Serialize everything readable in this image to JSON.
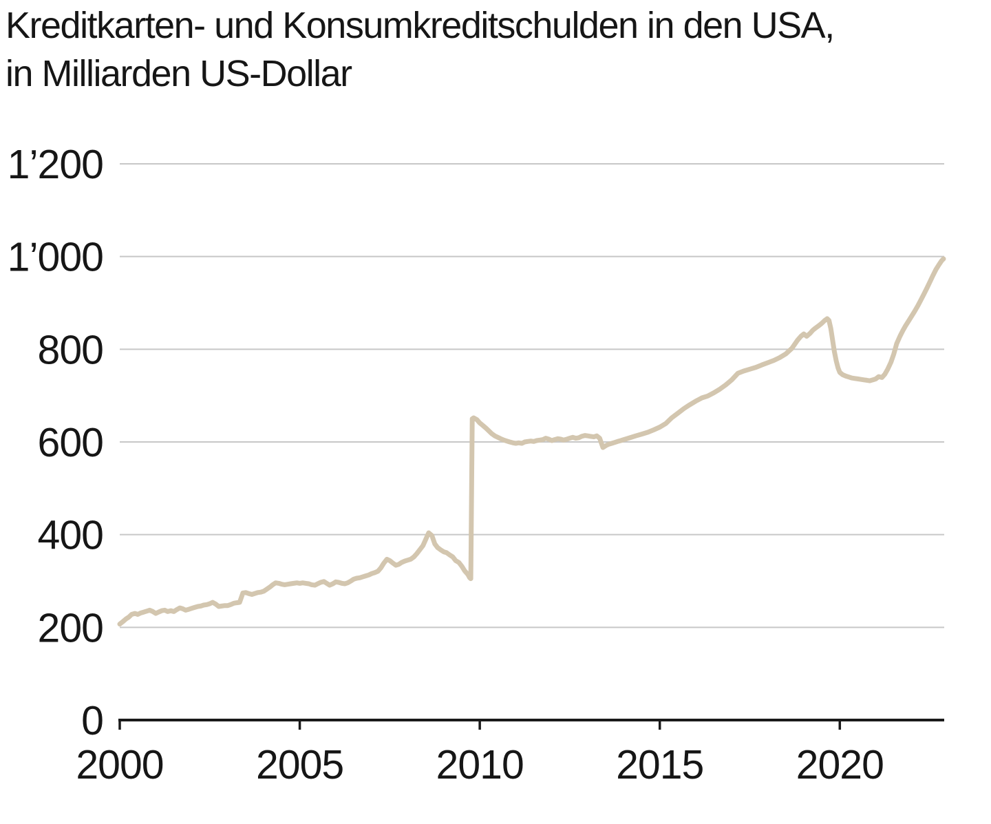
{
  "header": {
    "title_line1": "Kreditkarten- und Konsumkreditschulden in den USA,",
    "title_line2": "in Milliarden US-Dollar"
  },
  "colors": {
    "line": "#d3c6af",
    "grid": "#c7c7c7",
    "axis": "#1a1a1a",
    "text": "#161616"
  },
  "chart_data": {
    "type": "line",
    "title": "Kreditkarten- und Konsumkreditschulden in den USA, in Milliarden US-Dollar",
    "xlabel": "",
    "ylabel": "Milliarden US-Dollar",
    "x_range": [
      2000,
      2022.9
    ],
    "y_range": [
      0,
      1200
    ],
    "grid": "horizontal-only",
    "legend": "none",
    "x_ticks": [
      {
        "value": 2000,
        "label": "2000"
      },
      {
        "value": 2005,
        "label": "2005"
      },
      {
        "value": 2010,
        "label": "2010"
      },
      {
        "value": 2015,
        "label": "2015"
      },
      {
        "value": 2020,
        "label": "2020"
      }
    ],
    "y_ticks": [
      {
        "value": 0,
        "label": "0"
      },
      {
        "value": 200,
        "label": "200"
      },
      {
        "value": 400,
        "label": "400"
      },
      {
        "value": 600,
        "label": "600"
      },
      {
        "value": 800,
        "label": "800"
      },
      {
        "value": 1000,
        "label": "1’000"
      },
      {
        "value": 1200,
        "label": "1’200"
      }
    ],
    "series": [
      {
        "name": "Kreditkarten- und Konsumkreditschulden (Mrd. USD)",
        "color": "#d3c6af",
        "points": [
          [
            2000.0,
            207
          ],
          [
            2000.08,
            212
          ],
          [
            2000.17,
            218
          ],
          [
            2000.25,
            222
          ],
          [
            2000.33,
            228
          ],
          [
            2000.42,
            230
          ],
          [
            2000.5,
            228
          ],
          [
            2000.58,
            231
          ],
          [
            2000.67,
            233
          ],
          [
            2000.75,
            235
          ],
          [
            2000.83,
            237
          ],
          [
            2000.92,
            234
          ],
          [
            2001.0,
            230
          ],
          [
            2001.08,
            233
          ],
          [
            2001.17,
            236
          ],
          [
            2001.25,
            237
          ],
          [
            2001.33,
            234
          ],
          [
            2001.42,
            236
          ],
          [
            2001.5,
            234
          ],
          [
            2001.58,
            238
          ],
          [
            2001.67,
            242
          ],
          [
            2001.75,
            240
          ],
          [
            2001.83,
            237
          ],
          [
            2001.92,
            239
          ],
          [
            2002.0,
            241
          ],
          [
            2002.08,
            243
          ],
          [
            2002.17,
            245
          ],
          [
            2002.25,
            246
          ],
          [
            2002.33,
            248
          ],
          [
            2002.42,
            249
          ],
          [
            2002.5,
            251
          ],
          [
            2002.58,
            254
          ],
          [
            2002.67,
            250
          ],
          [
            2002.75,
            245
          ],
          [
            2002.83,
            246
          ],
          [
            2002.92,
            247
          ],
          [
            2003.0,
            247
          ],
          [
            2003.08,
            249
          ],
          [
            2003.17,
            252
          ],
          [
            2003.25,
            253
          ],
          [
            2003.33,
            254
          ],
          [
            2003.42,
            274
          ],
          [
            2003.5,
            275
          ],
          [
            2003.58,
            273
          ],
          [
            2003.67,
            271
          ],
          [
            2003.75,
            273
          ],
          [
            2003.83,
            275
          ],
          [
            2003.92,
            276
          ],
          [
            2004.0,
            278
          ],
          [
            2004.08,
            282
          ],
          [
            2004.17,
            287
          ],
          [
            2004.25,
            292
          ],
          [
            2004.33,
            296
          ],
          [
            2004.42,
            295
          ],
          [
            2004.5,
            293
          ],
          [
            2004.58,
            292
          ],
          [
            2004.67,
            293
          ],
          [
            2004.75,
            294
          ],
          [
            2004.83,
            295
          ],
          [
            2004.92,
            296
          ],
          [
            2005.0,
            295
          ],
          [
            2005.08,
            296
          ],
          [
            2005.17,
            295
          ],
          [
            2005.25,
            294
          ],
          [
            2005.33,
            292
          ],
          [
            2005.42,
            291
          ],
          [
            2005.5,
            294
          ],
          [
            2005.58,
            297
          ],
          [
            2005.67,
            299
          ],
          [
            2005.75,
            295
          ],
          [
            2005.83,
            291
          ],
          [
            2005.92,
            294
          ],
          [
            2006.0,
            298
          ],
          [
            2006.08,
            297
          ],
          [
            2006.17,
            295
          ],
          [
            2006.25,
            294
          ],
          [
            2006.33,
            296
          ],
          [
            2006.42,
            300
          ],
          [
            2006.5,
            304
          ],
          [
            2006.58,
            306
          ],
          [
            2006.67,
            307
          ],
          [
            2006.75,
            309
          ],
          [
            2006.83,
            311
          ],
          [
            2006.92,
            313
          ],
          [
            2007.0,
            316
          ],
          [
            2007.08,
            318
          ],
          [
            2007.17,
            321
          ],
          [
            2007.25,
            328
          ],
          [
            2007.33,
            338
          ],
          [
            2007.42,
            347
          ],
          [
            2007.5,
            344
          ],
          [
            2007.58,
            339
          ],
          [
            2007.67,
            334
          ],
          [
            2007.75,
            336
          ],
          [
            2007.83,
            340
          ],
          [
            2007.92,
            343
          ],
          [
            2008.0,
            345
          ],
          [
            2008.08,
            347
          ],
          [
            2008.17,
            352
          ],
          [
            2008.25,
            359
          ],
          [
            2008.33,
            367
          ],
          [
            2008.42,
            376
          ],
          [
            2008.5,
            390
          ],
          [
            2008.58,
            404
          ],
          [
            2008.67,
            398
          ],
          [
            2008.75,
            380
          ],
          [
            2008.83,
            372
          ],
          [
            2008.92,
            367
          ],
          [
            2009.0,
            363
          ],
          [
            2009.08,
            361
          ],
          [
            2009.17,
            356
          ],
          [
            2009.25,
            352
          ],
          [
            2009.33,
            344
          ],
          [
            2009.42,
            340
          ],
          [
            2009.5,
            332
          ],
          [
            2009.58,
            322
          ],
          [
            2009.67,
            314
          ],
          [
            2009.72,
            307
          ],
          [
            2009.75,
            305
          ],
          [
            2009.79,
            650
          ],
          [
            2009.83,
            652
          ],
          [
            2009.92,
            648
          ],
          [
            2010.0,
            641
          ],
          [
            2010.08,
            636
          ],
          [
            2010.17,
            630
          ],
          [
            2010.25,
            624
          ],
          [
            2010.33,
            618
          ],
          [
            2010.42,
            613
          ],
          [
            2010.5,
            610
          ],
          [
            2010.58,
            607
          ],
          [
            2010.67,
            604
          ],
          [
            2010.75,
            602
          ],
          [
            2010.83,
            600
          ],
          [
            2010.92,
            598
          ],
          [
            2011.0,
            597
          ],
          [
            2011.08,
            598
          ],
          [
            2011.17,
            597
          ],
          [
            2011.25,
            600
          ],
          [
            2011.33,
            601
          ],
          [
            2011.42,
            602
          ],
          [
            2011.5,
            601
          ],
          [
            2011.58,
            603
          ],
          [
            2011.67,
            604
          ],
          [
            2011.75,
            605
          ],
          [
            2011.83,
            608
          ],
          [
            2011.92,
            606
          ],
          [
            2012.0,
            603
          ],
          [
            2012.08,
            605
          ],
          [
            2012.17,
            607
          ],
          [
            2012.25,
            606
          ],
          [
            2012.33,
            604
          ],
          [
            2012.42,
            606
          ],
          [
            2012.5,
            608
          ],
          [
            2012.58,
            610
          ],
          [
            2012.67,
            608
          ],
          [
            2012.75,
            609
          ],
          [
            2012.83,
            612
          ],
          [
            2012.92,
            614
          ],
          [
            2013.0,
            613
          ],
          [
            2013.08,
            612
          ],
          [
            2013.17,
            611
          ],
          [
            2013.25,
            613
          ],
          [
            2013.33,
            608
          ],
          [
            2013.42,
            588
          ],
          [
            2013.5,
            592
          ],
          [
            2013.58,
            595
          ],
          [
            2013.67,
            597
          ],
          [
            2013.75,
            599
          ],
          [
            2013.83,
            601
          ],
          [
            2013.92,
            603
          ],
          [
            2014.0,
            605
          ],
          [
            2014.17,
            609
          ],
          [
            2014.33,
            613
          ],
          [
            2014.5,
            617
          ],
          [
            2014.67,
            621
          ],
          [
            2014.83,
            626
          ],
          [
            2015.0,
            632
          ],
          [
            2015.17,
            640
          ],
          [
            2015.33,
            652
          ],
          [
            2015.5,
            662
          ],
          [
            2015.67,
            672
          ],
          [
            2015.83,
            680
          ],
          [
            2016.0,
            688
          ],
          [
            2016.17,
            695
          ],
          [
            2016.33,
            699
          ],
          [
            2016.5,
            706
          ],
          [
            2016.67,
            714
          ],
          [
            2016.83,
            723
          ],
          [
            2017.0,
            734
          ],
          [
            2017.17,
            748
          ],
          [
            2017.33,
            753
          ],
          [
            2017.5,
            757
          ],
          [
            2017.67,
            761
          ],
          [
            2017.83,
            766
          ],
          [
            2018.0,
            771
          ],
          [
            2018.17,
            776
          ],
          [
            2018.33,
            782
          ],
          [
            2018.5,
            790
          ],
          [
            2018.67,
            802
          ],
          [
            2018.83,
            820
          ],
          [
            2018.92,
            828
          ],
          [
            2019.0,
            833
          ],
          [
            2019.08,
            828
          ],
          [
            2019.17,
            834
          ],
          [
            2019.25,
            841
          ],
          [
            2019.33,
            846
          ],
          [
            2019.42,
            851
          ],
          [
            2019.5,
            856
          ],
          [
            2019.58,
            862
          ],
          [
            2019.65,
            866
          ],
          [
            2019.7,
            862
          ],
          [
            2019.75,
            845
          ],
          [
            2019.8,
            820
          ],
          [
            2019.85,
            795
          ],
          [
            2019.9,
            775
          ],
          [
            2019.95,
            760
          ],
          [
            2020.0,
            750
          ],
          [
            2020.08,
            745
          ],
          [
            2020.17,
            742
          ],
          [
            2020.25,
            740
          ],
          [
            2020.33,
            738
          ],
          [
            2020.42,
            737
          ],
          [
            2020.5,
            736
          ],
          [
            2020.58,
            735
          ],
          [
            2020.67,
            734
          ],
          [
            2020.75,
            733
          ],
          [
            2020.83,
            732
          ],
          [
            2020.92,
            734
          ],
          [
            2021.0,
            736
          ],
          [
            2021.08,
            741
          ],
          [
            2021.17,
            739
          ],
          [
            2021.25,
            746
          ],
          [
            2021.33,
            757
          ],
          [
            2021.42,
            772
          ],
          [
            2021.5,
            790
          ],
          [
            2021.58,
            812
          ],
          [
            2021.67,
            828
          ],
          [
            2021.75,
            840
          ],
          [
            2021.83,
            851
          ],
          [
            2021.92,
            862
          ],
          [
            2022.0,
            872
          ],
          [
            2022.08,
            882
          ],
          [
            2022.17,
            894
          ],
          [
            2022.25,
            906
          ],
          [
            2022.33,
            918
          ],
          [
            2022.42,
            932
          ],
          [
            2022.5,
            945
          ],
          [
            2022.58,
            958
          ],
          [
            2022.67,
            972
          ],
          [
            2022.75,
            982
          ],
          [
            2022.83,
            991
          ],
          [
            2022.88,
            995
          ]
        ]
      }
    ]
  }
}
